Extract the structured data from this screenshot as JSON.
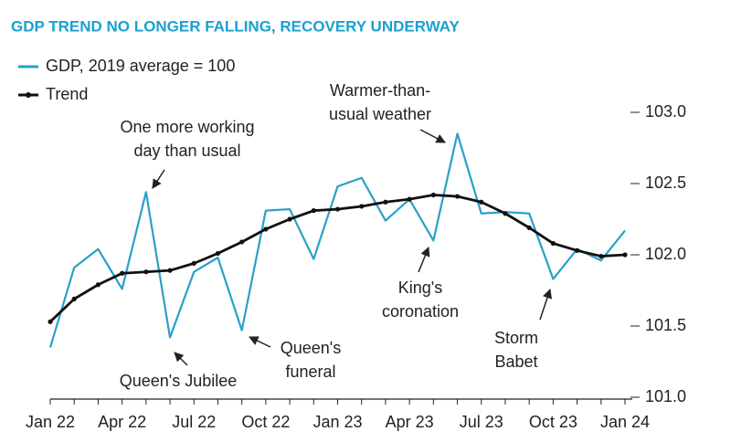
{
  "chart_data": {
    "type": "line",
    "title": "GDP TREND NO LONGER FALLING, RECOVERY UNDERWAY",
    "categories": [
      "Jan 22",
      null,
      null,
      "Apr 22",
      null,
      null,
      "Jul 22",
      null,
      null,
      "Oct 22",
      null,
      null,
      "Jan 23",
      null,
      null,
      "Apr 23",
      null,
      null,
      "Jul 23",
      null,
      null,
      "Oct 23",
      null,
      null,
      "Jan 24"
    ],
    "series": [
      {
        "name": "GDP, 2019 average = 100",
        "color": "#2a9fc9",
        "markers": false,
        "values": [
          101.35,
          101.91,
          102.04,
          101.76,
          102.44,
          101.42,
          101.88,
          101.98,
          101.47,
          102.31,
          102.32,
          101.97,
          102.48,
          102.54,
          102.24,
          102.39,
          102.1,
          102.85,
          102.29,
          102.3,
          102.29,
          101.83,
          102.04,
          101.96,
          102.17
        ]
      },
      {
        "name": "Trend",
        "color": "#111111",
        "markers": true,
        "values": [
          101.53,
          101.69,
          101.79,
          101.87,
          101.88,
          101.89,
          101.94,
          102.01,
          102.09,
          102.18,
          102.25,
          102.31,
          102.32,
          102.34,
          102.37,
          102.39,
          102.42,
          102.41,
          102.37,
          102.29,
          102.19,
          102.08,
          102.03,
          101.99,
          102.0
        ]
      }
    ],
    "ylim": [
      101,
      103
    ],
    "yticks": [
      {
        "value": 101,
        "label": "101.0"
      },
      {
        "value": 101.5,
        "label": "101.5"
      },
      {
        "value": 102,
        "label": "102.0"
      },
      {
        "value": 102.5,
        "label": "102.5"
      },
      {
        "value": 103,
        "label": "103.0"
      }
    ],
    "annotations": [
      {
        "lines": [
          "One more working",
          "day than usual"
        ]
      },
      {
        "lines": [
          "Queen's Jubilee"
        ]
      },
      {
        "lines": [
          "Queen's",
          "funeral"
        ]
      },
      {
        "lines": [
          "Warmer-than-",
          "usual weather"
        ]
      },
      {
        "lines": [
          "King's",
          "coronation"
        ]
      },
      {
        "lines": [
          "Storm",
          "Babet"
        ]
      }
    ]
  }
}
